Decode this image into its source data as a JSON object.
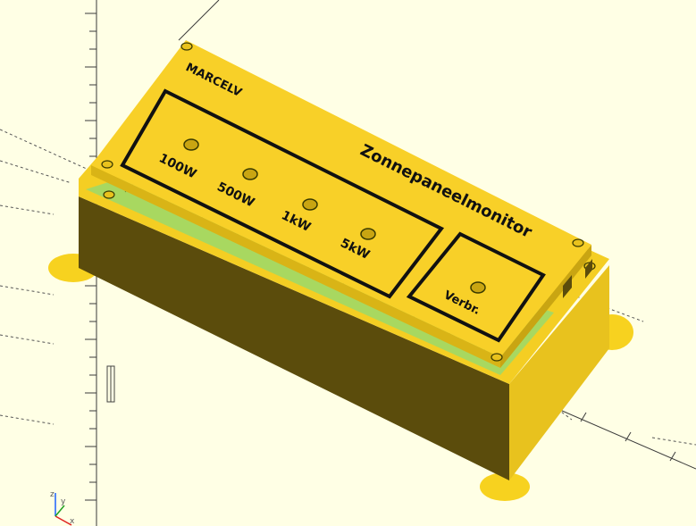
{
  "viewport": {
    "background": "#ffffe5",
    "axis_color": "#3a3a3a"
  },
  "model": {
    "brand": "MARCELV",
    "title": "Zonnepaneelmonitor",
    "indicators": [
      "100W",
      "500W",
      "1kW",
      "5kW"
    ],
    "usage_label": "Verbr.",
    "colors": {
      "top_face": "#f8d028",
      "front_face": "#5b4c0c",
      "right_face": "#e8c21e",
      "pcb": "#a8d860",
      "foot": "#f7d21f",
      "outline": "#111111"
    }
  },
  "axes_widget": {
    "x": "x",
    "y": "y",
    "z": "z"
  }
}
